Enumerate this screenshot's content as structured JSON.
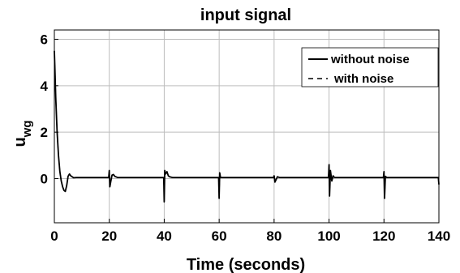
{
  "chart_data": {
    "type": "line",
    "title": "input signal",
    "xlabel": "Time (seconds)",
    "ylabel": "u",
    "ylabel_subscript": "wg",
    "xlim": [
      0,
      140
    ],
    "ylim": [
      -1.9,
      6.4
    ],
    "xticks": [
      0,
      20,
      40,
      60,
      80,
      100,
      120,
      140
    ],
    "yticks": [
      0,
      2,
      4,
      6
    ],
    "grid": true,
    "legend_position": "top-right",
    "series": [
      {
        "name": "without noise",
        "style": "solid",
        "color": "#000000",
        "x": [
          0,
          0.2,
          0.5,
          1.0,
          1.5,
          2.0,
          2.5,
          3.0,
          3.5,
          4.0,
          4.5,
          5.0,
          5.5,
          6.0,
          7.0,
          8.0,
          10.0,
          15.0,
          19.8,
          20.0,
          20.2,
          20.5,
          21.0,
          21.5,
          22.0,
          23.0,
          25.0,
          30.0,
          39.8,
          40.0,
          40.2,
          40.5,
          41.0,
          41.5,
          42.0,
          43.0,
          45.0,
          50.0,
          59.8,
          60.0,
          60.2,
          60.5,
          62.0,
          70.0,
          79.8,
          80.0,
          80.3,
          80.7,
          81.2,
          82.0,
          90.0,
          99.8,
          100.0,
          100.2,
          100.5,
          101.0,
          101.5,
          102.0,
          103.0,
          110.0,
          119.8,
          120.0,
          120.2,
          120.5,
          121.0,
          122.0,
          130.0,
          139.8,
          140.0
        ],
        "y": [
          5.5,
          4.7,
          3.5,
          2.0,
          1.0,
          0.3,
          -0.1,
          -0.35,
          -0.5,
          -0.55,
          -0.3,
          0.1,
          0.2,
          0.12,
          0.04,
          0.05,
          0.05,
          0.05,
          0.05,
          0.35,
          -0.35,
          -0.15,
          0.15,
          0.18,
          0.1,
          0.05,
          0.05,
          0.05,
          0.05,
          -1.0,
          0.35,
          0.2,
          0.3,
          0.12,
          0.08,
          0.05,
          0.05,
          0.05,
          0.05,
          -0.85,
          0.25,
          0.05,
          0.05,
          0.05,
          0.05,
          0.12,
          -0.15,
          -0.05,
          0.08,
          0.05,
          0.05,
          0.05,
          0.6,
          -0.75,
          0.35,
          -0.1,
          0.12,
          0.05,
          0.05,
          0.05,
          0.05,
          0.3,
          -0.85,
          0.1,
          0.05,
          0.05,
          0.05,
          0.05,
          -0.25
        ]
      },
      {
        "name": "with noise",
        "style": "dashed",
        "color": "#000000",
        "x": [
          0,
          0.2,
          0.5,
          1.0,
          1.5,
          2.0,
          2.5,
          3.0,
          3.5,
          4.0,
          4.5,
          5.0,
          5.5,
          6.0,
          7.0,
          8.0,
          10.0,
          15.0,
          19.8,
          20.0,
          20.2,
          20.5,
          21.0,
          21.5,
          22.0,
          23.0,
          25.0,
          30.0,
          39.8,
          40.0,
          40.2,
          40.5,
          41.0,
          41.5,
          42.0,
          43.0,
          45.0,
          50.0,
          59.8,
          60.0,
          60.2,
          60.5,
          62.0,
          70.0,
          79.8,
          80.0,
          80.3,
          80.7,
          81.2,
          82.0,
          90.0,
          99.8,
          100.0,
          100.2,
          100.5,
          101.0,
          101.5,
          102.0,
          103.0,
          110.0,
          119.8,
          120.0,
          120.2,
          120.5,
          121.0,
          122.0,
          130.0,
          139.8,
          140.0
        ],
        "y": [
          5.5,
          4.7,
          3.5,
          2.0,
          1.0,
          0.3,
          -0.1,
          -0.35,
          -0.5,
          -0.55,
          -0.3,
          0.1,
          0.2,
          0.12,
          0.04,
          0.05,
          0.05,
          0.05,
          0.05,
          0.35,
          -0.35,
          -0.15,
          0.15,
          0.18,
          0.1,
          0.05,
          0.05,
          0.05,
          0.05,
          -1.0,
          0.35,
          0.2,
          0.3,
          0.12,
          0.08,
          0.05,
          0.05,
          0.05,
          0.05,
          -0.85,
          0.25,
          0.05,
          0.05,
          0.05,
          0.05,
          0.12,
          -0.15,
          -0.05,
          0.08,
          0.05,
          0.05,
          0.05,
          0.6,
          -0.75,
          0.35,
          -0.1,
          0.12,
          0.05,
          0.05,
          0.05,
          0.05,
          0.3,
          -0.85,
          0.1,
          0.05,
          0.05,
          0.05,
          0.05,
          -0.25
        ]
      }
    ]
  }
}
